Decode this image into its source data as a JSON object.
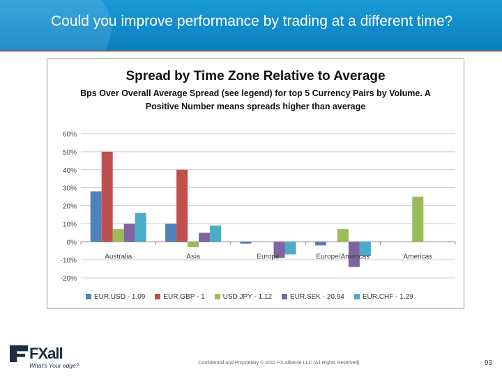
{
  "slide": {
    "title": "Could you improve performance by trading at a different time?",
    "footer": "Confidential and Proprietary © 2012 FX Alliance LLC (All Rights Reserved)",
    "page_number": "93"
  },
  "logo": {
    "name": "FXall",
    "tagline": "What's Your edge?"
  },
  "colors": {
    "header_blue": "#1a9ad6",
    "logo_navy": "#1b2f45"
  },
  "chart_data": {
    "type": "bar",
    "title": "Spread by Time Zone Relative to Average",
    "subtitle": "Bps Over Overall Average Spread (see legend) for top 5 Currency Pairs by Volume. A Positive Number means spreads higher than average",
    "categories": [
      "Australia",
      "Asia",
      "Europe",
      "Europe/Americas",
      "Americas"
    ],
    "ylim": [
      -0.2,
      0.6
    ],
    "yticks": [
      "60%",
      "50%",
      "40%",
      "30%",
      "20%",
      "10%",
      "0%",
      "-10%",
      "-20%"
    ],
    "grid": true,
    "legend_position": "bottom",
    "series": [
      {
        "name": "EUR.USD - 1.09",
        "color": "#4f81bd",
        "values": [
          0.28,
          0.1,
          -0.01,
          -0.02,
          0
        ]
      },
      {
        "name": "EUR.GBP - 1",
        "color": "#c0504d",
        "values": [
          0.5,
          0.4,
          0,
          0,
          0
        ]
      },
      {
        "name": "USD.JPY - 1.12",
        "color": "#9bbb59",
        "values": [
          0.07,
          -0.03,
          0,
          0.07,
          0.25
        ]
      },
      {
        "name": "EUR.SEK - 20.94",
        "color": "#8064a2",
        "values": [
          0.1,
          0.05,
          -0.09,
          -0.14,
          0
        ]
      },
      {
        "name": "EUR.CHF - 1.29",
        "color": "#4bacc6",
        "values": [
          0.16,
          0.09,
          -0.07,
          -0.08,
          0
        ]
      }
    ]
  }
}
